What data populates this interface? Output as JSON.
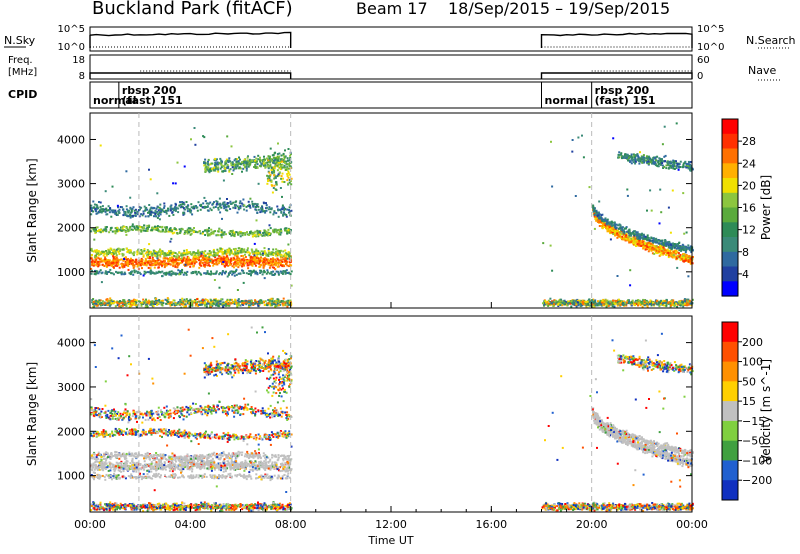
{
  "header": {
    "title": "Buckland Park (fitACF)",
    "beam": "Beam 17",
    "date_range": "18/Sep/2015 – 19/Sep/2015"
  },
  "strips": {
    "nsky": {
      "label": "N.Sky",
      "ticks": [
        "10^5",
        "10^0"
      ],
      "right_label": "N.Search",
      "right_ticks": [
        "10^5",
        "10^0"
      ]
    },
    "freq": {
      "label_lines": [
        "Freq.",
        "[MHz]"
      ],
      "ticks": [
        "18",
        "8"
      ],
      "right_label": "Nave",
      "right_ticks": [
        "60",
        "0"
      ]
    },
    "cpid": {
      "label": "CPID",
      "segments": [
        {
          "t": 0,
          "text": "normal"
        },
        {
          "t": 1.15,
          "text": "rbsp 200"
        },
        {
          "t": 1.15,
          "text": "(fast) 151"
        },
        {
          "t": 18.0,
          "text": "normal"
        },
        {
          "t": 20.0,
          "text": "rbsp 200"
        },
        {
          "t": 20.0,
          "text": "(fast) 151"
        }
      ]
    }
  },
  "chart_data": [
    {
      "type": "heatmap",
      "ylabel": "Slant Range [km]",
      "colorbar_label": "Power [dB]",
      "colorbar_ticks": [
        "28",
        "24",
        "20",
        "16",
        "12",
        "8",
        "4"
      ],
      "colorbar_range": [
        0,
        32
      ],
      "colors": [
        "#0000ff",
        "#2040a0",
        "#2f6aa0",
        "#3a8a78",
        "#2e8b57",
        "#5aaa3c",
        "#8cc63f",
        "#f0e000",
        "#ffb000",
        "#ff7000",
        "#ff3000",
        "#ff0000"
      ],
      "yticks": [
        1000,
        2000,
        3000,
        4000
      ],
      "ylim": [
        180,
        4600
      ],
      "data_windows_hours": [
        [
          0,
          8
        ],
        [
          18,
          24
        ]
      ],
      "features": [
        {
          "name": "near-range band",
          "t": [
            0,
            8
          ],
          "range_km": [
            1050,
            1500
          ],
          "value_db": 26
        },
        {
          "name": "mid-range band",
          "t": [
            0,
            8
          ],
          "range_km": [
            1850,
            2150
          ],
          "value_db": 14
        },
        {
          "name": "far-range band",
          "t": [
            0,
            8
          ],
          "range_km": [
            2250,
            2750
          ],
          "value_db": 7
        },
        {
          "name": "upper band",
          "t": [
            5,
            8
          ],
          "range_km": [
            3200,
            4400
          ],
          "value_db": 12
        },
        {
          "name": "evening descending band",
          "t": [
            20,
            24
          ],
          "range_km": [
            1200,
            2700
          ],
          "value_db": 24
        },
        {
          "name": "evening far band",
          "t": [
            21,
            24
          ],
          "range_km": [
            2800,
            3700
          ],
          "value_db": 8
        },
        {
          "name": "ground clutter",
          "t": [
            0,
            24
          ],
          "range_km": [
            200,
            500
          ],
          "value_db": 10
        }
      ]
    },
    {
      "type": "heatmap",
      "ylabel": "Slant Range [km]",
      "colorbar_label": "Velocity [m s^-1]",
      "colorbar_ticks": [
        "200",
        "100",
        "50",
        "15",
        "−15",
        "−50",
        "−100",
        "−200"
      ],
      "colors": [
        "#1030c0",
        "#2060d0",
        "#40a040",
        "#80d040",
        "#c0c0c0",
        "#ffd000",
        "#ff9000",
        "#ff5000",
        "#ff0000"
      ],
      "yticks": [
        1000,
        2000,
        3000,
        4000
      ],
      "ylim": [
        180,
        4600
      ],
      "data_windows_hours": [
        [
          0,
          8
        ],
        [
          18,
          24
        ]
      ]
    }
  ],
  "xaxis": {
    "label": "Time UT",
    "ticks": [
      "00:00",
      "04:00",
      "08:00",
      "12:00",
      "16:00",
      "20:00",
      "00:00"
    ]
  }
}
